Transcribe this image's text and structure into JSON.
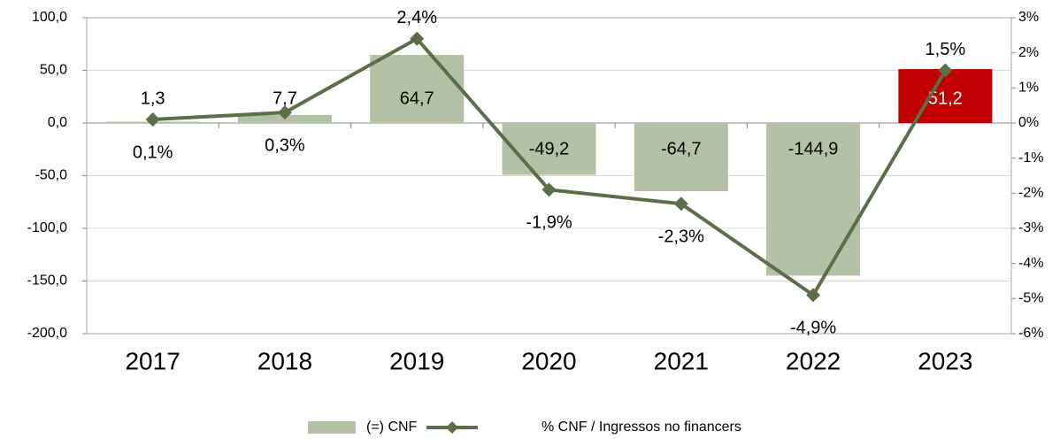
{
  "chart_data": {
    "type": "bar",
    "categories": [
      "2017",
      "2018",
      "2019",
      "2020",
      "2021",
      "2022",
      "2023"
    ],
    "series": [
      {
        "name": "(=) CNF",
        "type": "bar",
        "colors": [
          "#b3c2a6",
          "#b3c2a6",
          "#b3c2a6",
          "#b3c2a6",
          "#b3c2a6",
          "#b3c2a6",
          "#c00000"
        ],
        "values": [
          1.3,
          7.7,
          64.7,
          -49.2,
          -64.7,
          -144.9,
          51.2
        ],
        "value_labels": [
          "1,3",
          "7,7",
          "64,7",
          "-49,2",
          "-64,7",
          "-144,9",
          "51,2"
        ]
      },
      {
        "name": "% CNF / Ingressos no financers",
        "type": "line",
        "axis": "y2",
        "color": "#5b6e47",
        "values": [
          0.1,
          0.3,
          2.4,
          -1.9,
          -2.3,
          -4.9,
          1.5
        ],
        "value_labels": [
          "0,1%",
          "0,3%",
          "2,4%",
          "-1,9%",
          "-2,3%",
          "-4,9%",
          "1,5%"
        ]
      }
    ],
    "ylim": [
      -200,
      100
    ],
    "yticks": [
      {
        "value": -200,
        "label": "-200,0"
      },
      {
        "value": -150,
        "label": "-150,0"
      },
      {
        "value": -100,
        "label": "-100,0"
      },
      {
        "value": -50,
        "label": "-50,0"
      },
      {
        "value": 0,
        "label": "0,0"
      },
      {
        "value": 50,
        "label": "50,0"
      },
      {
        "value": 100,
        "label": "100,0"
      }
    ],
    "y2lim": [
      -6,
      3
    ],
    "y2ticks": [
      {
        "value": -6,
        "label": "-6%"
      },
      {
        "value": -5,
        "label": "-5%"
      },
      {
        "value": -4,
        "label": "-4%"
      },
      {
        "value": -3,
        "label": "-3%"
      },
      {
        "value": -2,
        "label": "-2%"
      },
      {
        "value": -1,
        "label": "-1%"
      },
      {
        "value": 0,
        "label": "0%"
      },
      {
        "value": 1,
        "label": "1%"
      },
      {
        "value": 2,
        "label": "2%"
      },
      {
        "value": 3,
        "label": "3%"
      }
    ],
    "grid": true,
    "legend": "bottom"
  }
}
